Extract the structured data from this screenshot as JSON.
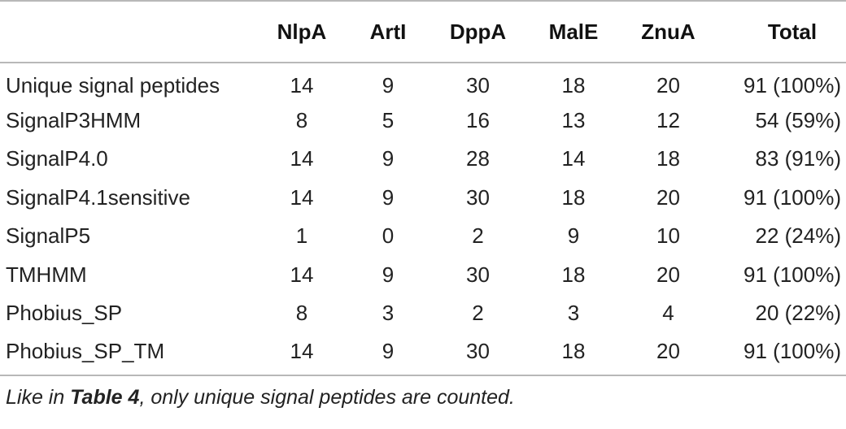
{
  "table": {
    "headers": [
      "",
      "NlpA",
      "ArtI",
      "DppA",
      "MalE",
      "ZnuA",
      "Total"
    ],
    "rows": [
      {
        "label": "Unique signal peptides",
        "values": [
          "14",
          "9",
          "30",
          "18",
          "20"
        ],
        "total": "91 (100%)"
      },
      {
        "label": "SignalP3HMM",
        "values": [
          "8",
          "5",
          "16",
          "13",
          "12"
        ],
        "total": "54 (59%)"
      },
      {
        "label": "SignalP4.0",
        "values": [
          "14",
          "9",
          "28",
          "14",
          "18"
        ],
        "total": "83 (91%)"
      },
      {
        "label": "SignalP4.1sensitive",
        "values": [
          "14",
          "9",
          "30",
          "18",
          "20"
        ],
        "total": "91 (100%)"
      },
      {
        "label": "SignalP5",
        "values": [
          "1",
          "0",
          "2",
          "9",
          "10"
        ],
        "total": "22 (24%)"
      },
      {
        "label": "TMHMM",
        "values": [
          "14",
          "9",
          "30",
          "18",
          "20"
        ],
        "total": "91 (100%)"
      },
      {
        "label": "Phobius_SP",
        "values": [
          "8",
          "3",
          "2",
          "3",
          "4"
        ],
        "total": "20 (22%)"
      },
      {
        "label": "Phobius_SP_TM",
        "values": [
          "14",
          "9",
          "30",
          "18",
          "20"
        ],
        "total": "91 (100%)"
      }
    ]
  },
  "footnote": {
    "prefix": "Like in ",
    "ref": "Table 4",
    "suffix": ", only unique signal peptides are counted."
  }
}
